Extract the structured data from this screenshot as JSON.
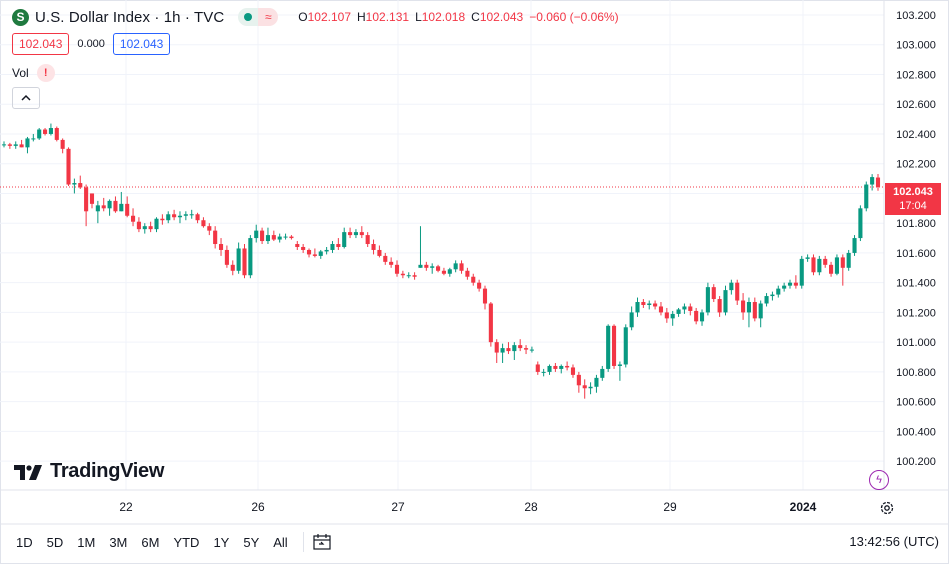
{
  "header": {
    "symbol_icon": "S",
    "title": "U.S. Dollar Index · 1h · TVC",
    "wave_icon": "≈",
    "ohlc": {
      "o_label": "O",
      "o_value": "102.107",
      "h_label": "H",
      "h_value": "102.131",
      "l_label": "L",
      "l_value": "102.018",
      "c_label": "C",
      "c_value": "102.043",
      "change": "−0.060 (−0.06%)"
    },
    "sell_price": "102.043",
    "spread": "0.000",
    "buy_price": "102.043",
    "volume_label": "Vol",
    "volume_warning": "!"
  },
  "last_price": {
    "value": "102.043",
    "countdown": "17:04"
  },
  "brand": "TradingView",
  "bottom": {
    "timeframes": [
      "1D",
      "5D",
      "1M",
      "3M",
      "6M",
      "YTD",
      "1Y",
      "5Y",
      "All"
    ],
    "clock": "13:42:56 (UTC)"
  },
  "colors": {
    "up": "#089981",
    "down": "#f23645",
    "grid": "#f0f3fa",
    "text": "#131722"
  },
  "chart_data": {
    "type": "candlestick",
    "title": "U.S. Dollar Index · 1h · TVC",
    "ylim": [
      100.1,
      103.2
    ],
    "y_ticks": [
      "103.200",
      "103.000",
      "102.800",
      "102.600",
      "102.400",
      "102.200",
      "102.000",
      "101.800",
      "101.600",
      "101.400",
      "101.200",
      "101.000",
      "100.800",
      "100.600",
      "100.400",
      "100.200"
    ],
    "x_ticks": [
      "22",
      "26",
      "27",
      "28",
      "29",
      "2024"
    ],
    "last_value": 102.043,
    "candles": [
      [
        102.33,
        102.35,
        102.31,
        102.33
      ],
      [
        102.33,
        102.34,
        102.3,
        102.32
      ],
      [
        102.32,
        102.35,
        102.3,
        102.33
      ],
      [
        102.33,
        102.36,
        102.31,
        102.31
      ],
      [
        102.31,
        102.38,
        102.27,
        102.37
      ],
      [
        102.37,
        102.4,
        102.35,
        102.37
      ],
      [
        102.37,
        102.44,
        102.36,
        102.43
      ],
      [
        102.43,
        102.44,
        102.39,
        102.4
      ],
      [
        102.4,
        102.47,
        102.39,
        102.44
      ],
      [
        102.44,
        102.45,
        102.35,
        102.36
      ],
      [
        102.36,
        102.37,
        102.27,
        102.3
      ],
      [
        102.3,
        102.31,
        102.05,
        102.06
      ],
      [
        102.06,
        102.1,
        102.0,
        102.07
      ],
      [
        102.07,
        102.12,
        102.03,
        102.04
      ],
      [
        102.04,
        102.06,
        101.78,
        101.88
      ],
      [
        102.0,
        102.0,
        101.9,
        101.93
      ],
      [
        101.88,
        101.95,
        101.8,
        101.92
      ],
      [
        101.92,
        101.97,
        101.88,
        101.9
      ],
      [
        101.9,
        101.96,
        101.85,
        101.95
      ],
      [
        101.95,
        101.98,
        101.87,
        101.88
      ],
      [
        101.88,
        102.01,
        101.88,
        101.93
      ],
      [
        101.93,
        101.98,
        101.84,
        101.85
      ],
      [
        101.85,
        101.9,
        101.78,
        101.81
      ],
      [
        101.81,
        101.84,
        101.74,
        101.76
      ],
      [
        101.76,
        101.8,
        101.73,
        101.78
      ],
      [
        101.78,
        101.81,
        101.74,
        101.76
      ],
      [
        101.76,
        101.84,
        101.74,
        101.83
      ],
      [
        101.83,
        101.86,
        101.79,
        101.82
      ],
      [
        101.82,
        101.88,
        101.8,
        101.86
      ],
      [
        101.86,
        101.89,
        101.82,
        101.84
      ],
      [
        101.84,
        101.88,
        101.8,
        101.85
      ],
      [
        101.85,
        101.88,
        101.82,
        101.86
      ],
      [
        101.86,
        101.89,
        101.83,
        101.86
      ],
      [
        101.86,
        101.87,
        101.8,
        101.82
      ],
      [
        101.82,
        101.84,
        101.77,
        101.78
      ],
      [
        101.78,
        101.8,
        101.72,
        101.75
      ],
      [
        101.75,
        101.78,
        101.63,
        101.66
      ],
      [
        101.66,
        101.7,
        101.58,
        101.62
      ],
      [
        101.62,
        101.65,
        101.5,
        101.52
      ],
      [
        101.52,
        101.55,
        101.45,
        101.48
      ],
      [
        101.48,
        101.67,
        101.46,
        101.63
      ],
      [
        101.63,
        101.66,
        101.43,
        101.45
      ],
      [
        101.45,
        101.72,
        101.43,
        101.7
      ],
      [
        101.7,
        101.79,
        101.67,
        101.75
      ],
      [
        101.75,
        101.77,
        101.66,
        101.68
      ],
      [
        101.68,
        101.77,
        101.66,
        101.72
      ],
      [
        101.72,
        101.75,
        101.68,
        101.69
      ],
      [
        101.69,
        101.73,
        101.67,
        101.71
      ],
      [
        101.71,
        101.73,
        101.69,
        101.71
      ],
      [
        101.71,
        101.72,
        101.69,
        101.7
      ],
      [
        101.66,
        101.68,
        101.62,
        101.64
      ],
      [
        101.64,
        101.66,
        101.6,
        101.62
      ],
      [
        101.62,
        101.63,
        101.57,
        101.59
      ],
      [
        101.59,
        101.63,
        101.57,
        101.58
      ],
      [
        101.58,
        101.62,
        101.56,
        101.61
      ],
      [
        101.61,
        101.64,
        101.59,
        101.62
      ],
      [
        101.62,
        101.68,
        101.6,
        101.66
      ],
      [
        101.66,
        101.7,
        101.62,
        101.64
      ],
      [
        101.64,
        101.77,
        101.63,
        101.74
      ],
      [
        101.74,
        101.77,
        101.7,
        101.72
      ],
      [
        101.72,
        101.76,
        101.7,
        101.74
      ],
      [
        101.74,
        101.78,
        101.7,
        101.72
      ],
      [
        101.72,
        101.74,
        101.64,
        101.66
      ],
      [
        101.66,
        101.69,
        101.59,
        101.62
      ],
      [
        101.62,
        101.65,
        101.57,
        101.58
      ],
      [
        101.58,
        101.6,
        101.52,
        101.54
      ],
      [
        101.54,
        101.57,
        101.5,
        101.52
      ],
      [
        101.52,
        101.55,
        101.44,
        101.46
      ],
      [
        101.46,
        101.48,
        101.43,
        101.45
      ],
      [
        101.45,
        101.47,
        101.43,
        101.45
      ],
      [
        101.45,
        101.47,
        101.42,
        101.44
      ],
      [
        101.5,
        101.78,
        101.5,
        101.52
      ],
      [
        101.52,
        101.54,
        101.48,
        101.5
      ],
      [
        101.5,
        101.53,
        101.46,
        101.51
      ],
      [
        101.51,
        101.52,
        101.47,
        101.48
      ],
      [
        101.48,
        101.5,
        101.45,
        101.46
      ],
      [
        101.46,
        101.5,
        101.44,
        101.49
      ],
      [
        101.49,
        101.55,
        101.47,
        101.53
      ],
      [
        101.53,
        101.55,
        101.46,
        101.48
      ],
      [
        101.48,
        101.5,
        101.42,
        101.44
      ],
      [
        101.44,
        101.46,
        101.38,
        101.4
      ],
      [
        101.4,
        101.42,
        101.34,
        101.36
      ],
      [
        101.36,
        101.38,
        101.22,
        101.26
      ],
      [
        101.26,
        101.27,
        100.97,
        101.0
      ],
      [
        101.0,
        101.02,
        100.86,
        100.93
      ],
      [
        100.93,
        100.99,
        100.86,
        100.96
      ],
      [
        100.96,
        101.0,
        100.92,
        100.94
      ],
      [
        100.94,
        101.0,
        100.88,
        100.98
      ],
      [
        100.98,
        101.02,
        100.94,
        100.96
      ],
      [
        100.96,
        100.98,
        100.92,
        100.95
      ],
      [
        100.95,
        100.97,
        100.93,
        100.95
      ],
      [
        100.85,
        100.87,
        100.78,
        100.8
      ],
      [
        100.8,
        100.82,
        100.77,
        100.8
      ],
      [
        100.8,
        100.85,
        100.78,
        100.84
      ],
      [
        100.84,
        100.86,
        100.8,
        100.82
      ],
      [
        100.82,
        100.85,
        100.79,
        100.84
      ],
      [
        100.84,
        100.87,
        100.81,
        100.83
      ],
      [
        100.83,
        100.85,
        100.76,
        100.78
      ],
      [
        100.78,
        100.8,
        100.66,
        100.71
      ],
      [
        100.71,
        100.75,
        100.62,
        100.69
      ],
      [
        100.69,
        100.73,
        100.65,
        100.7
      ],
      [
        100.7,
        100.78,
        100.66,
        100.76
      ],
      [
        100.76,
        100.84,
        100.74,
        100.82
      ],
      [
        100.82,
        101.12,
        100.8,
        101.11
      ],
      [
        101.11,
        101.12,
        100.82,
        100.84
      ],
      [
        100.84,
        100.87,
        100.74,
        100.85
      ],
      [
        100.85,
        101.12,
        100.83,
        101.1
      ],
      [
        101.1,
        101.24,
        101.08,
        101.2
      ],
      [
        101.2,
        101.3,
        101.17,
        101.27
      ],
      [
        101.27,
        101.29,
        101.23,
        101.25
      ],
      [
        101.25,
        101.28,
        101.22,
        101.26
      ],
      [
        101.26,
        101.28,
        101.22,
        101.24
      ],
      [
        101.24,
        101.27,
        101.18,
        101.2
      ],
      [
        101.2,
        101.23,
        101.13,
        101.16
      ],
      [
        101.16,
        101.21,
        101.11,
        101.19
      ],
      [
        101.19,
        101.23,
        101.17,
        101.22
      ],
      [
        101.22,
        101.26,
        101.19,
        101.24
      ],
      [
        101.24,
        101.26,
        101.18,
        101.21
      ],
      [
        101.21,
        101.23,
        101.12,
        101.14
      ],
      [
        101.14,
        101.22,
        101.11,
        101.2
      ],
      [
        101.2,
        101.4,
        101.18,
        101.37
      ],
      [
        101.37,
        101.39,
        101.27,
        101.29
      ],
      [
        101.29,
        101.31,
        101.17,
        101.2
      ],
      [
        101.2,
        101.38,
        101.18,
        101.35
      ],
      [
        101.35,
        101.42,
        101.32,
        101.4
      ],
      [
        101.4,
        101.42,
        101.25,
        101.28
      ],
      [
        101.28,
        101.33,
        101.15,
        101.2
      ],
      [
        101.2,
        101.3,
        101.1,
        101.27
      ],
      [
        101.27,
        101.3,
        101.14,
        101.16
      ],
      [
        101.16,
        101.28,
        101.1,
        101.26
      ],
      [
        101.26,
        101.33,
        101.24,
        101.31
      ],
      [
        101.31,
        101.34,
        101.28,
        101.32
      ],
      [
        101.32,
        101.38,
        101.3,
        101.36
      ],
      [
        101.36,
        101.4,
        101.34,
        101.38
      ],
      [
        101.38,
        101.42,
        101.36,
        101.4
      ],
      [
        101.4,
        101.45,
        101.36,
        101.38
      ],
      [
        101.38,
        101.58,
        101.36,
        101.56
      ],
      [
        101.56,
        101.59,
        101.54,
        101.57
      ],
      [
        101.57,
        101.59,
        101.45,
        101.47
      ],
      [
        101.47,
        101.58,
        101.45,
        101.56
      ],
      [
        101.56,
        101.58,
        101.5,
        101.52
      ],
      [
        101.52,
        101.54,
        101.44,
        101.46
      ],
      [
        101.46,
        101.59,
        101.45,
        101.57
      ],
      [
        101.57,
        101.59,
        101.38,
        101.5
      ],
      [
        101.5,
        101.62,
        101.48,
        101.6
      ],
      [
        101.6,
        101.72,
        101.58,
        101.7
      ],
      [
        101.7,
        101.92,
        101.68,
        101.9
      ],
      [
        101.9,
        102.08,
        101.88,
        102.06
      ],
      [
        102.06,
        102.13,
        102.02,
        102.11
      ],
      [
        102.107,
        102.131,
        102.018,
        102.043
      ]
    ]
  }
}
